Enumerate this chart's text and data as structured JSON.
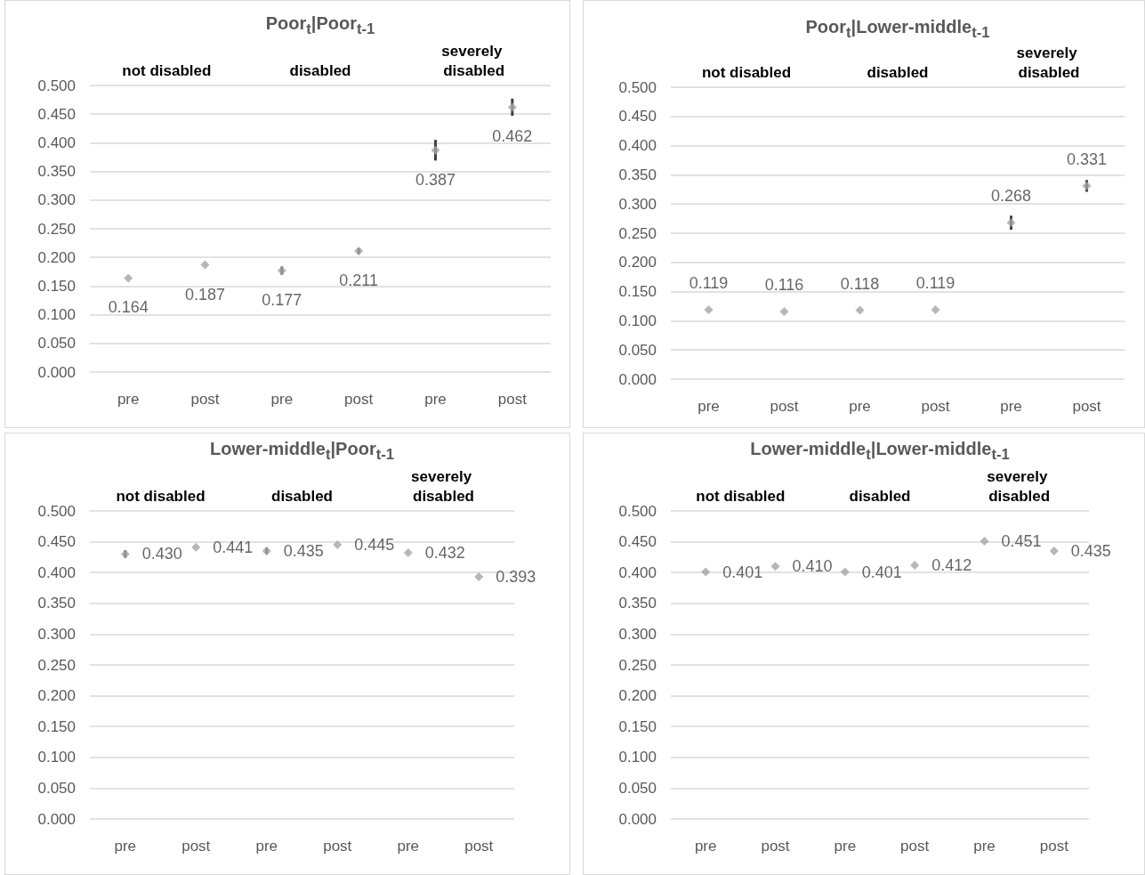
{
  "chart_data": [
    {
      "type": "scatter",
      "title": "Poor$_{t}$|Poor$_{t-1}$",
      "categories": [
        "pre",
        "post",
        "pre",
        "post",
        "pre",
        "post"
      ],
      "values": [
        0.164,
        0.187,
        0.177,
        0.211,
        0.387,
        0.462
      ],
      "value_labels": [
        "0.164",
        "0.187",
        "0.177",
        "0.211",
        "0.387",
        "0.462"
      ],
      "errors": [
        null,
        null,
        0.007,
        0.005,
        0.018,
        0.015
      ],
      "color": "#a5a5a5",
      "marker": "diamond",
      "grid": "y",
      "annotations": [
        "not disabled",
        "disabled",
        "severely disabled"
      ],
      "ylim": [
        0,
        0.5
      ],
      "yticks": [
        {
          "value": 0,
          "label": "0.000"
        },
        {
          "value": 0.05,
          "label": "0.050"
        },
        {
          "value": 0.1,
          "label": "0.100"
        },
        {
          "value": 0.15,
          "label": "0.150"
        },
        {
          "value": 0.2,
          "label": "0.200"
        },
        {
          "value": 0.25,
          "label": "0.250"
        },
        {
          "value": 0.3,
          "label": "0.300"
        },
        {
          "value": 0.35,
          "label": "0.350"
        },
        {
          "value": 0.4,
          "label": "0.400"
        },
        {
          "value": 0.45,
          "label": "0.450"
        },
        {
          "value": 0.5,
          "label": "0.500"
        }
      ]
    },
    {
      "type": "scatter",
      "title": "Poor$_{t}$|Lower-middle$_{t-1}$",
      "categories": [
        "pre",
        "post",
        "pre",
        "post",
        "pre",
        "post"
      ],
      "values": [
        0.119,
        0.116,
        0.118,
        0.119,
        0.268,
        0.331
      ],
      "value_labels": [
        "0.119",
        "0.116",
        "0.118",
        "0.119",
        "0.268",
        "0.331"
      ],
      "errors": [
        null,
        null,
        null,
        null,
        0.012,
        0.01
      ],
      "color": "#a5a5a5",
      "marker": "diamond",
      "grid": "y",
      "annotations": [
        "not disabled",
        "disabled",
        "severely disabled"
      ],
      "ylim": [
        0,
        0.5
      ],
      "yticks": [
        {
          "value": 0,
          "label": "0.000"
        },
        {
          "value": 0.05,
          "label": "0.050"
        },
        {
          "value": 0.1,
          "label": "0.100"
        },
        {
          "value": 0.15,
          "label": "0.150"
        },
        {
          "value": 0.2,
          "label": "0.200"
        },
        {
          "value": 0.25,
          "label": "0.250"
        },
        {
          "value": 0.3,
          "label": "0.300"
        },
        {
          "value": 0.35,
          "label": "0.350"
        },
        {
          "value": 0.4,
          "label": "0.400"
        },
        {
          "value": 0.45,
          "label": "0.450"
        },
        {
          "value": 0.5,
          "label": "0.500"
        }
      ]
    },
    {
      "type": "scatter",
      "title": "Lower-middle$_{t}$|Poor$_{t-1}$",
      "categories": [
        "pre",
        "post",
        "pre",
        "post",
        "pre",
        "post"
      ],
      "values": [
        0.43,
        0.441,
        0.435,
        0.445,
        0.432,
        0.393
      ],
      "value_labels": [
        "0.430",
        "0.441",
        "0.435",
        "0.445",
        "0.432",
        "0.393"
      ],
      "errors": [
        0.006,
        null,
        0.005,
        null,
        null,
        null
      ],
      "color": "#a5a5a5",
      "marker": "diamond",
      "grid": "y",
      "annotations": [
        "not disabled",
        "disabled",
        "severely disabled"
      ],
      "ylim": [
        0,
        0.5
      ],
      "yticks": [
        {
          "value": 0,
          "label": "0.000"
        },
        {
          "value": 0.05,
          "label": "0.050"
        },
        {
          "value": 0.1,
          "label": "0.100"
        },
        {
          "value": 0.15,
          "label": "0.150"
        },
        {
          "value": 0.2,
          "label": "0.200"
        },
        {
          "value": 0.25,
          "label": "0.250"
        },
        {
          "value": 0.3,
          "label": "0.300"
        },
        {
          "value": 0.35,
          "label": "0.350"
        },
        {
          "value": 0.4,
          "label": "0.400"
        },
        {
          "value": 0.45,
          "label": "0.450"
        },
        {
          "value": 0.5,
          "label": "0.500"
        }
      ]
    },
    {
      "type": "scatter",
      "title": "Lower-middle$_{t}$|Lower-middle$_{t-1}$",
      "categories": [
        "pre",
        "post",
        "pre",
        "post",
        "pre",
        "post"
      ],
      "values": [
        0.401,
        0.41,
        0.401,
        0.412,
        0.451,
        0.435
      ],
      "value_labels": [
        "0.401",
        "0.410",
        "0.401",
        "0.412",
        "0.451",
        "0.435"
      ],
      "color": "#a5a5a5",
      "marker": "diamond",
      "grid": "y",
      "annotations": [
        "not disabled",
        "disabled",
        "severely disabled"
      ],
      "ylim": [
        0,
        0.5
      ],
      "yticks": [
        {
          "value": 0,
          "label": "0.000"
        },
        {
          "value": 0.05,
          "label": "0.050"
        },
        {
          "value": 0.1,
          "label": "0.100"
        },
        {
          "value": 0.15,
          "label": "0.150"
        },
        {
          "value": 0.2,
          "label": "0.200"
        },
        {
          "value": 0.25,
          "label": "0.250"
        },
        {
          "value": 0.3,
          "label": "0.300"
        },
        {
          "value": 0.35,
          "label": "0.350"
        },
        {
          "value": 0.4,
          "label": "0.400"
        },
        {
          "value": 0.45,
          "label": "0.450"
        },
        {
          "value": 0.5,
          "label": "0.500"
        }
      ]
    }
  ]
}
